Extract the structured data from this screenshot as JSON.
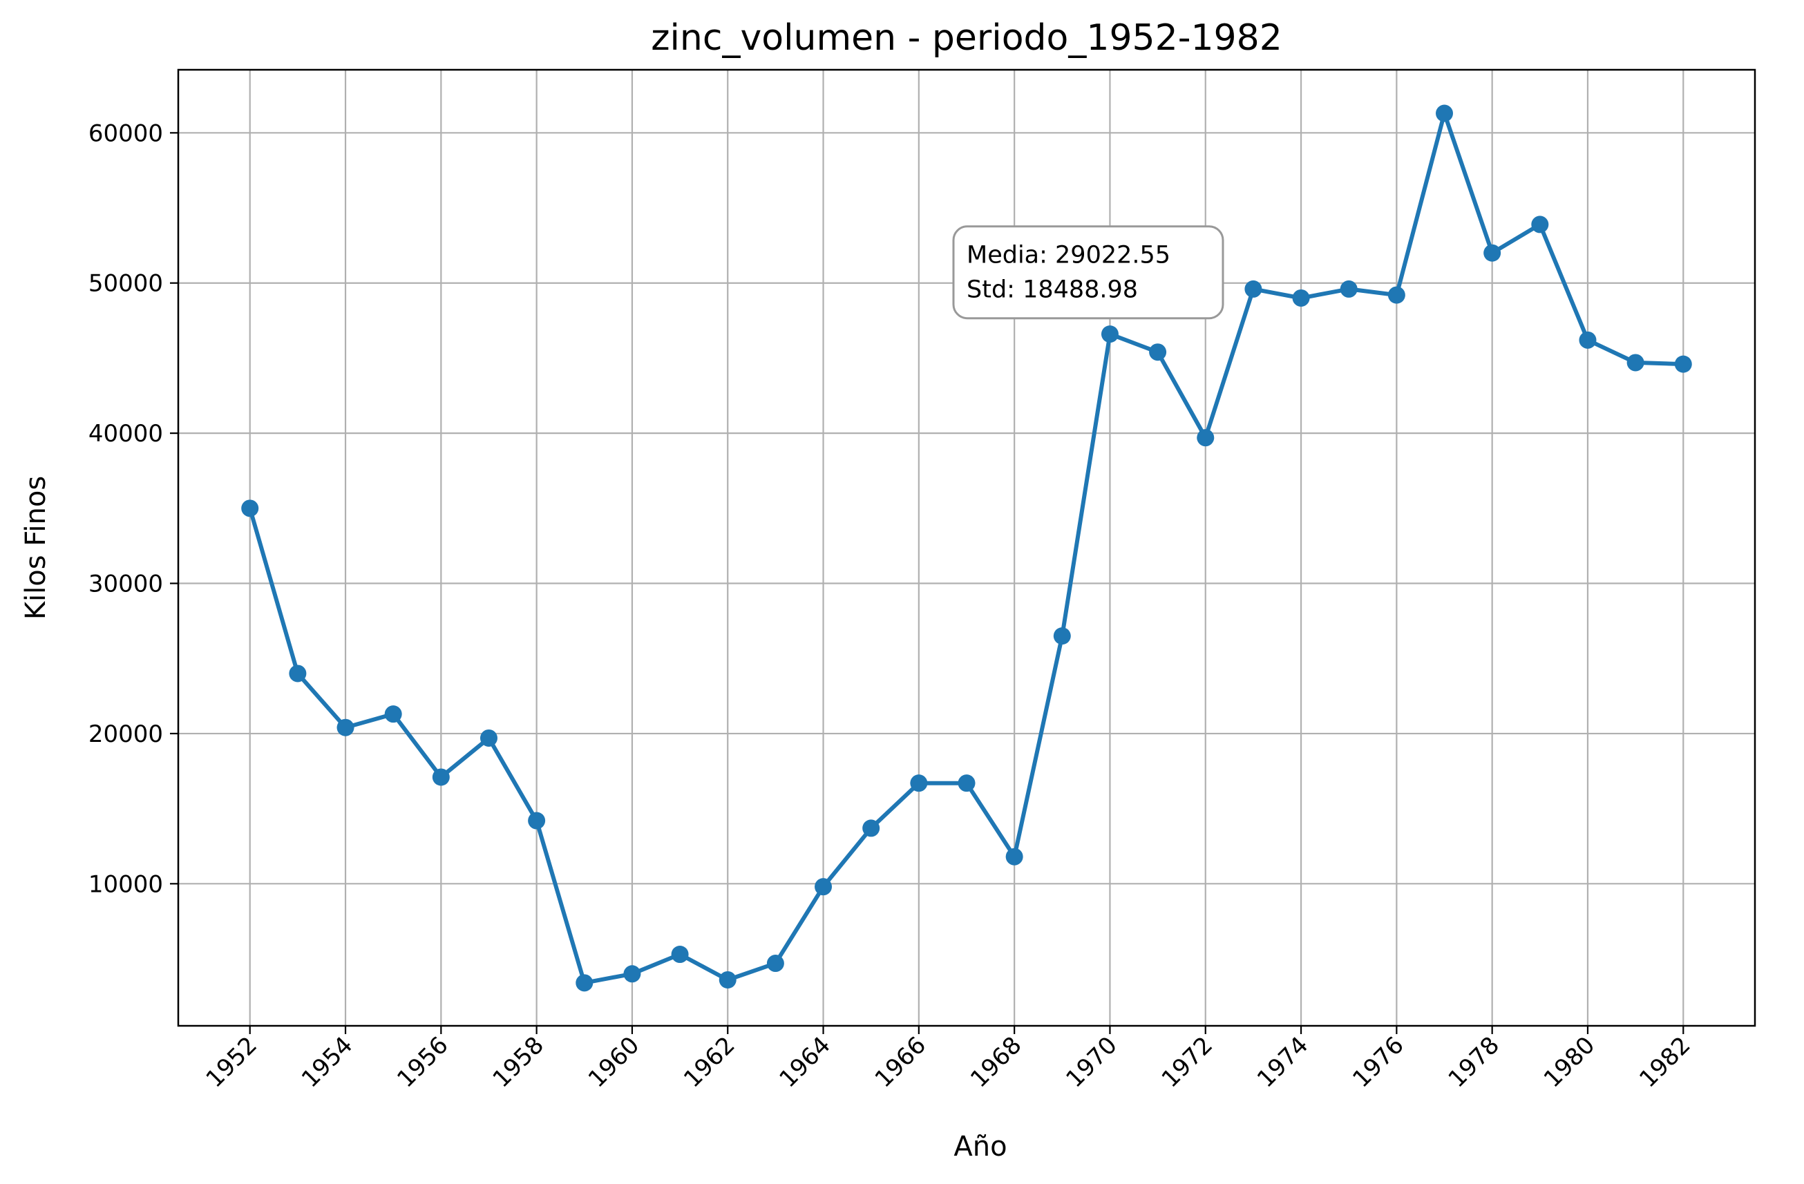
{
  "chart_data": {
    "type": "line",
    "title": "zinc_volumen - periodo_1952-1982",
    "xlabel": "Año",
    "ylabel": "Kilos Finos",
    "xlim": [
      1950.5,
      1983.5
    ],
    "ylim": [
      540,
      64200
    ],
    "xticks": [
      1952,
      1954,
      1956,
      1958,
      1960,
      1962,
      1964,
      1966,
      1968,
      1970,
      1972,
      1974,
      1976,
      1978,
      1980,
      1982
    ],
    "yticks": [
      10000,
      20000,
      30000,
      40000,
      50000,
      60000
    ],
    "grid": true,
    "line_color": "#1f77b4",
    "marker": "circle",
    "series": [
      {
        "x": [
          1952,
          1953,
          1954,
          1955,
          1956,
          1957,
          1958,
          1959,
          1960,
          1961,
          1962,
          1963,
          1964,
          1965,
          1966,
          1967,
          1968,
          1969,
          1970,
          1971,
          1972,
          1973,
          1974,
          1975,
          1976,
          1977,
          1978,
          1979,
          1980,
          1981,
          1982
        ],
        "values": [
          35000,
          24000,
          20400,
          21300,
          17100,
          19700,
          14200,
          3400,
          4000,
          5300,
          3600,
          4700,
          9800,
          13700,
          16700,
          16700,
          11800,
          26500,
          46600,
          45400,
          39700,
          49600,
          49000,
          49600,
          49200,
          61300,
          52000,
          53900,
          46200,
          44700,
          44600
        ]
      }
    ],
    "annotations": [
      {
        "lines": [
          "Media: 29022.55",
          "Std: 18488.98"
        ],
        "x": 1967,
        "y": 50000
      }
    ]
  }
}
